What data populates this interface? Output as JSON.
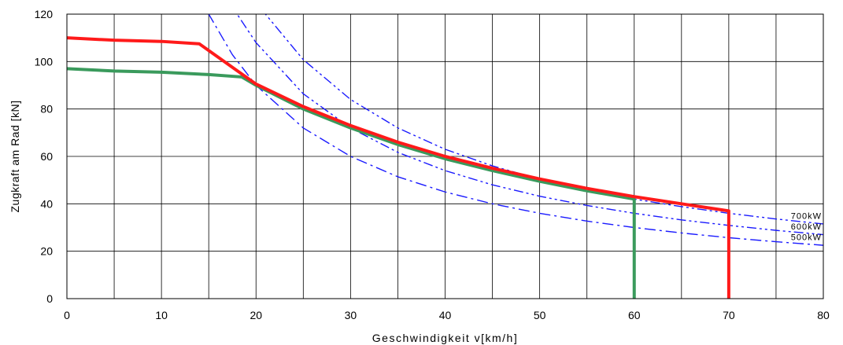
{
  "chart_data": {
    "type": "line",
    "xlabel": "Geschwindigkeit v[km/h]",
    "ylabel": "Zugkraft am Rad [kN]",
    "xlim": [
      0,
      80
    ],
    "ylim": [
      0,
      120
    ],
    "x_ticks": [
      "0",
      "10",
      "20",
      "30",
      "40",
      "50",
      "60",
      "70",
      "80"
    ],
    "y_ticks": [
      "0",
      "20",
      "40",
      "60",
      "80",
      "100",
      "120"
    ],
    "x_gridlines_every": 5,
    "y_gridlines_every": 20,
    "grid": true,
    "colors": {
      "red": "#ff1a1a",
      "green": "#3a9a5c",
      "blue": "#1a1aff",
      "grid": "#000000"
    },
    "series": [
      {
        "style": "solid",
        "color": "red",
        "x": [
          0,
          5,
          10,
          14,
          17,
          20,
          25,
          30,
          35,
          40,
          45,
          50,
          55,
          60,
          65,
          70,
          70
        ],
        "y": [
          110,
          109,
          108.5,
          107.5,
          99,
          90.5,
          81,
          73,
          66,
          60,
          55,
          50.5,
          46.5,
          43,
          40,
          37,
          0
        ]
      },
      {
        "style": "solid",
        "color": "green",
        "x": [
          0,
          5,
          10,
          15,
          18.5,
          20,
          25,
          30,
          35,
          40,
          45,
          50,
          55,
          60,
          60
        ],
        "y": [
          97,
          96,
          95.5,
          94.5,
          93.5,
          90,
          80,
          72,
          65,
          59,
          54,
          49.5,
          45.5,
          42,
          0
        ]
      },
      {
        "name": "500kW",
        "style": "dashdot",
        "color": "blue",
        "x": [
          14,
          15,
          17.5,
          20,
          25,
          30,
          35,
          40,
          45,
          50,
          55,
          60,
          65,
          70,
          75,
          80
        ],
        "y": [
          128.6,
          120,
          102.9,
          90,
          72,
          60,
          51.4,
          45,
          40,
          36,
          32.7,
          30,
          27.7,
          25.7,
          24,
          22.5
        ]
      },
      {
        "name": "600kW",
        "style": "dashdotdot",
        "color": "blue",
        "x": [
          15,
          18,
          20,
          25,
          30,
          35,
          40,
          45,
          50,
          55,
          60,
          65,
          70,
          75,
          80
        ],
        "y": [
          144,
          120,
          108,
          86.4,
          72,
          61.7,
          54,
          48,
          43.2,
          39.3,
          36,
          33.2,
          30.9,
          28.8,
          27
        ]
      },
      {
        "name": "700kW",
        "style": "dashdotdot",
        "color": "blue",
        "x": [
          18,
          21,
          25,
          30,
          35,
          40,
          45,
          50,
          55,
          60,
          65,
          70,
          75,
          80
        ],
        "y": [
          140,
          120,
          100.8,
          84,
          72,
          63,
          56,
          50.4,
          45.8,
          42,
          38.8,
          36,
          33.6,
          31.5
        ]
      }
    ]
  }
}
